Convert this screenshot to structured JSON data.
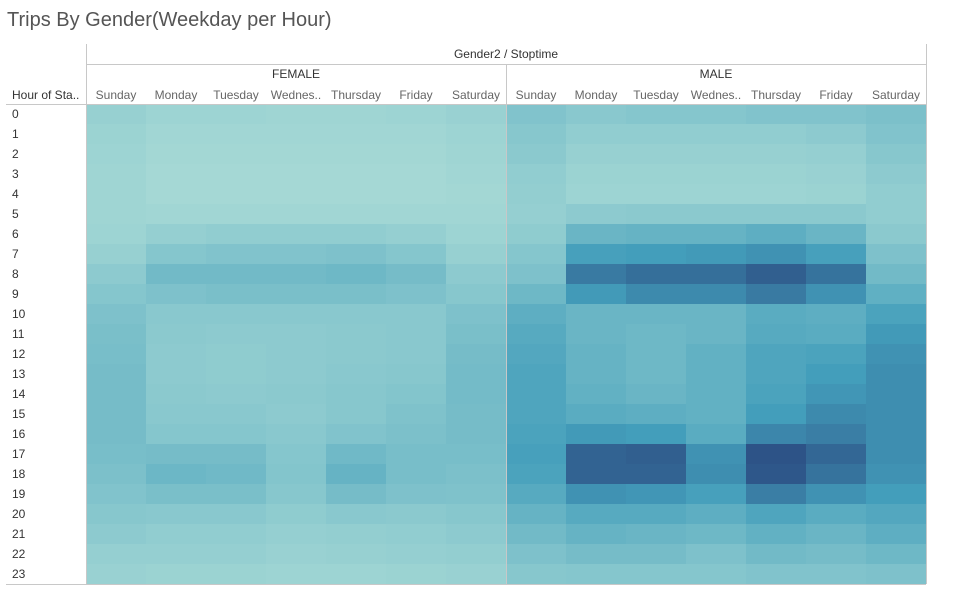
{
  "chart_data": {
    "type": "heatmap",
    "title": "Trips By Gender(Weekday per Hour)",
    "column_field_label": "Gender2 / Stoptime",
    "row_field_label": "Hour of Sta..",
    "groups": [
      "FEMALE",
      "MALE"
    ],
    "day_labels": [
      "Sunday",
      "Monday",
      "Tuesday",
      "Wednes..",
      "Thursday",
      "Friday",
      "Saturday"
    ],
    "hours": [
      "0",
      "1",
      "2",
      "3",
      "4",
      "5",
      "6",
      "7",
      "8",
      "9",
      "10",
      "11",
      "12",
      "13",
      "14",
      "15",
      "16",
      "17",
      "18",
      "19",
      "20",
      "21",
      "22",
      "23"
    ],
    "color_range": [
      "#b8e4da",
      "#2c4f84"
    ],
    "value_scale": [
      0,
      100
    ],
    "values": {
      "FEMALE": [
        [
          17,
          14,
          14,
          13,
          13,
          14,
          16
        ],
        [
          15,
          12,
          12,
          12,
          12,
          12,
          14
        ],
        [
          14,
          11,
          11,
          11,
          11,
          11,
          13
        ],
        [
          13,
          10,
          10,
          10,
          10,
          10,
          12
        ],
        [
          13,
          10,
          10,
          10,
          10,
          10,
          11
        ],
        [
          13,
          12,
          12,
          12,
          12,
          12,
          12
        ],
        [
          14,
          18,
          20,
          20,
          20,
          18,
          14
        ],
        [
          17,
          26,
          28,
          28,
          30,
          26,
          17
        ],
        [
          22,
          36,
          36,
          36,
          38,
          34,
          22
        ],
        [
          26,
          30,
          32,
          32,
          32,
          30,
          25
        ],
        [
          30,
          24,
          24,
          24,
          24,
          24,
          30
        ],
        [
          32,
          23,
          22,
          22,
          23,
          24,
          32
        ],
        [
          33,
          22,
          21,
          22,
          23,
          24,
          34
        ],
        [
          34,
          22,
          21,
          22,
          24,
          25,
          35
        ],
        [
          34,
          23,
          22,
          23,
          25,
          27,
          35
        ],
        [
          34,
          24,
          24,
          22,
          25,
          29,
          34
        ],
        [
          34,
          26,
          26,
          24,
          28,
          31,
          34
        ],
        [
          33,
          34,
          34,
          26,
          37,
          33,
          33
        ],
        [
          31,
          39,
          37,
          27,
          42,
          33,
          31
        ],
        [
          28,
          32,
          32,
          25,
          34,
          30,
          29
        ],
        [
          25,
          24,
          24,
          21,
          24,
          23,
          25
        ],
        [
          22,
          20,
          20,
          18,
          19,
          20,
          22
        ],
        [
          18,
          18,
          18,
          16,
          17,
          18,
          19
        ],
        [
          16,
          15,
          15,
          14,
          14,
          15,
          16
        ]
      ],
      "MALE": [
        [
          28,
          24,
          26,
          26,
          28,
          28,
          31
        ],
        [
          25,
          20,
          20,
          20,
          20,
          22,
          28
        ],
        [
          23,
          17,
          17,
          17,
          17,
          18,
          25
        ],
        [
          20,
          15,
          15,
          15,
          15,
          16,
          22
        ],
        [
          19,
          14,
          14,
          14,
          14,
          15,
          20
        ],
        [
          18,
          22,
          23,
          23,
          23,
          23,
          20
        ],
        [
          21,
          40,
          42,
          42,
          46,
          40,
          23
        ],
        [
          26,
          58,
          60,
          62,
          66,
          58,
          30
        ],
        [
          30,
          78,
          84,
          84,
          92,
          82,
          36
        ],
        [
          38,
          62,
          70,
          70,
          78,
          66,
          45
        ],
        [
          46,
          40,
          40,
          40,
          48,
          46,
          56
        ],
        [
          50,
          40,
          38,
          40,
          50,
          48,
          62
        ],
        [
          52,
          42,
          38,
          44,
          54,
          56,
          66
        ],
        [
          54,
          42,
          38,
          44,
          54,
          60,
          68
        ],
        [
          54,
          44,
          40,
          44,
          56,
          64,
          68
        ],
        [
          54,
          48,
          46,
          44,
          60,
          70,
          68
        ],
        [
          56,
          62,
          60,
          48,
          72,
          76,
          68
        ],
        [
          58,
          90,
          92,
          66,
          98,
          88,
          68
        ],
        [
          56,
          90,
          90,
          68,
          96,
          82,
          66
        ],
        [
          50,
          66,
          64,
          58,
          76,
          66,
          60
        ],
        [
          42,
          50,
          50,
          46,
          54,
          48,
          52
        ],
        [
          36,
          42,
          40,
          38,
          44,
          40,
          46
        ],
        [
          30,
          34,
          34,
          30,
          36,
          34,
          38
        ],
        [
          25,
          26,
          26,
          26,
          28,
          28,
          30
        ]
      ]
    }
  }
}
